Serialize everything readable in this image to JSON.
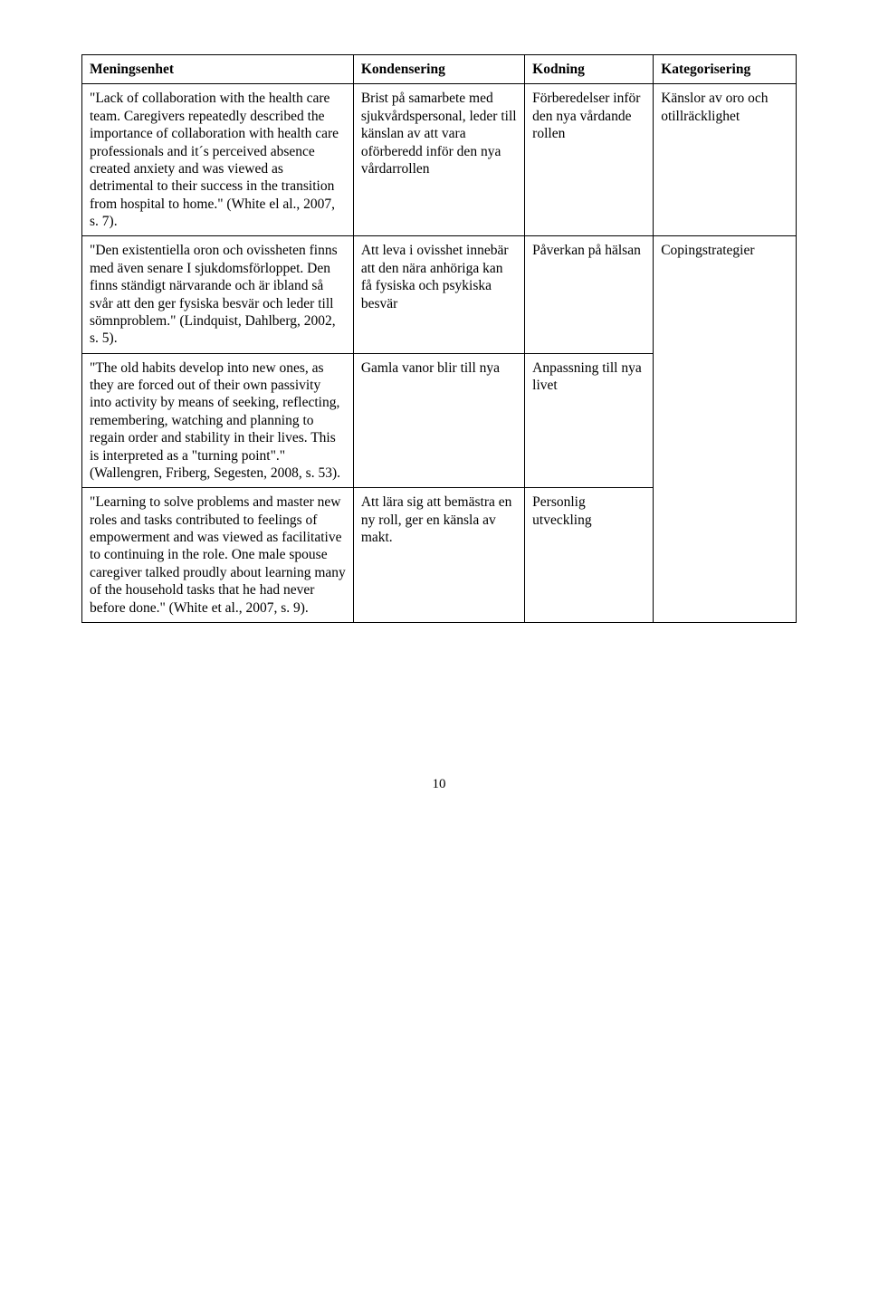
{
  "table": {
    "headers": [
      "Meningsenhet",
      "Kondensering",
      "Kodning",
      "Kategorisering"
    ],
    "rows": [
      {
        "c1": "\"Lack of collaboration with the health care team. Caregivers repeatedly described the importance of collaboration with health care professionals and it´s perceived absence created anxiety and was viewed as detrimental to their success in the transition from hospital to home.\" (White el al., 2007, s. 7).",
        "c2": "Brist på samarbete med sjukvårdspersonal, leder till känslan av att vara oförberedd inför den nya vårdarrollen",
        "c3": "Förberedelser inför den nya vårdande rollen",
        "c4": "Känslor av oro och otillräcklighet"
      },
      {
        "c1": "\"Den existentiella oron och ovissheten finns med även senare I sjukdomsförloppet. Den finns ständigt närvarande och är ibland så svår att den ger fysiska besvär och leder till sömnproblem.\" (Lindquist, Dahlberg, 2002, s. 5).",
        "c2": "Att leva i ovisshet innebär att den nära anhöriga kan få fysiska och psykiska besvär",
        "c3": "Påverkan på hälsan",
        "c4_rowspan": 3,
        "c4": "Copingstrategier"
      },
      {
        "c1": "\"The old habits develop into new ones, as they are forced out of their own passivity into activity by means of seeking, reflecting, remembering, watching and planning to regain order and stability in their lives. This is interpreted as a \"turning point\".\" (Wallengren, Friberg, Segesten, 2008, s. 53).",
        "c2": "Gamla vanor blir till nya",
        "c3": "Anpassning till nya livet"
      },
      {
        "c1": "\"Learning to solve problems and master new roles and tasks contributed to feelings of empowerment and was viewed as facilitative to continuing in the role. One male spouse caregiver talked proudly about learning many of the household tasks that he had never before done.\" (White et al., 2007, s. 9).",
        "c2": "Att lära sig att bemästra en ny roll, ger en känsla av makt.",
        "c3": "Personlig utveckling"
      }
    ]
  },
  "pageNumber": "10"
}
